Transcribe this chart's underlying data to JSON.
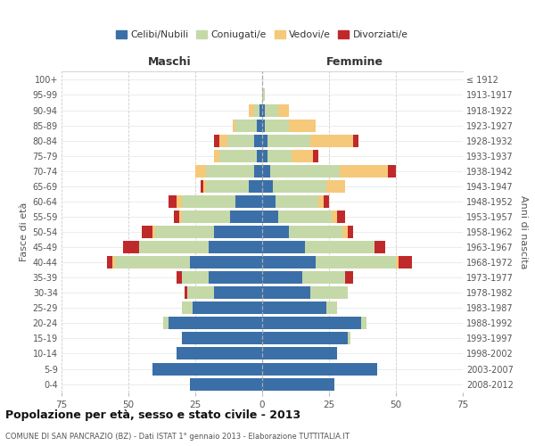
{
  "age_groups": [
    "0-4",
    "5-9",
    "10-14",
    "15-19",
    "20-24",
    "25-29",
    "30-34",
    "35-39",
    "40-44",
    "45-49",
    "50-54",
    "55-59",
    "60-64",
    "65-69",
    "70-74",
    "75-79",
    "80-84",
    "85-89",
    "90-94",
    "95-99",
    "100+"
  ],
  "birth_years": [
    "2008-2012",
    "2003-2007",
    "1998-2002",
    "1993-1997",
    "1988-1992",
    "1983-1987",
    "1978-1982",
    "1973-1977",
    "1968-1972",
    "1963-1967",
    "1958-1962",
    "1953-1957",
    "1948-1952",
    "1943-1947",
    "1938-1942",
    "1933-1937",
    "1928-1932",
    "1923-1927",
    "1918-1922",
    "1913-1917",
    "≤ 1912"
  ],
  "males": {
    "celibi": [
      27,
      41,
      32,
      30,
      35,
      26,
      18,
      20,
      27,
      20,
      18,
      12,
      10,
      5,
      3,
      2,
      3,
      2,
      1,
      0,
      0
    ],
    "coniugati": [
      0,
      0,
      0,
      0,
      2,
      4,
      10,
      10,
      28,
      26,
      22,
      18,
      20,
      16,
      18,
      14,
      10,
      8,
      2,
      0,
      0
    ],
    "vedovi": [
      0,
      0,
      0,
      0,
      0,
      0,
      0,
      0,
      1,
      0,
      1,
      1,
      2,
      1,
      4,
      2,
      3,
      1,
      2,
      0,
      0
    ],
    "divorziati": [
      0,
      0,
      0,
      0,
      0,
      0,
      1,
      2,
      2,
      6,
      4,
      2,
      3,
      1,
      0,
      0,
      2,
      0,
      0,
      0,
      0
    ]
  },
  "females": {
    "nubili": [
      27,
      43,
      28,
      32,
      37,
      24,
      18,
      15,
      20,
      16,
      10,
      6,
      5,
      4,
      3,
      2,
      2,
      1,
      1,
      0,
      0
    ],
    "coniugate": [
      0,
      0,
      0,
      1,
      2,
      4,
      14,
      16,
      30,
      26,
      20,
      20,
      16,
      20,
      26,
      9,
      16,
      9,
      5,
      1,
      0
    ],
    "vedove": [
      0,
      0,
      0,
      0,
      0,
      0,
      0,
      0,
      1,
      0,
      2,
      2,
      2,
      7,
      18,
      8,
      16,
      10,
      4,
      0,
      0
    ],
    "divorziate": [
      0,
      0,
      0,
      0,
      0,
      0,
      0,
      3,
      5,
      4,
      2,
      3,
      2,
      0,
      3,
      2,
      2,
      0,
      0,
      0,
      0
    ]
  },
  "colors": {
    "celibi": "#3b6fa8",
    "coniugati": "#c5d9a8",
    "vedovi": "#f5c87a",
    "divorziati": "#c0292a"
  },
  "xlim": 75,
  "title": "Popolazione per età, sesso e stato civile - 2013",
  "subtitle": "COMUNE DI SAN PANCRAZIO (BZ) - Dati ISTAT 1° gennaio 2013 - Elaborazione TUTTITALIA.IT",
  "ylabel_left": "Fasce di età",
  "ylabel_right": "Anni di nascita",
  "label_maschi": "Maschi",
  "label_femmine": "Femmine"
}
